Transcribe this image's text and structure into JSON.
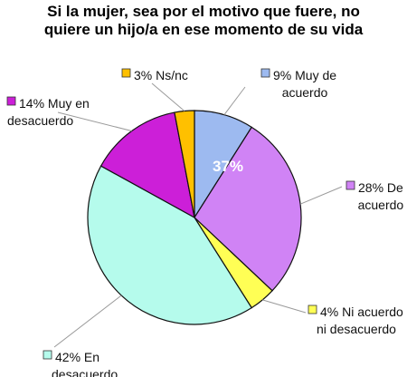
{
  "chart_data": {
    "type": "pie",
    "title": [
      "Si la mujer, sea por el motivo que fuere, no",
      "quiere un hijo/a en ese momento de su vida"
    ],
    "slices": [
      {
        "label": "9% Muy de acuerdo",
        "lines": [
          "9% Muy de",
          "acuerdo"
        ],
        "value": 9,
        "color": "#9dbaf0"
      },
      {
        "label": "28% De acuerdo",
        "lines": [
          "28% De",
          "acuerdo"
        ],
        "value": 28,
        "color": "#d083f5"
      },
      {
        "label": "4% Ni acuerdo ni desacuerdo",
        "lines": [
          "4% Ni acuerdo",
          "ni desacuerdo"
        ],
        "value": 4,
        "color": "#ffff55"
      },
      {
        "label": "42% En desacuerdo",
        "lines": [
          "42% En",
          "desacuerdo"
        ],
        "value": 42,
        "color": "#b5fbec"
      },
      {
        "label": "14% Muy en desacuerdo",
        "lines": [
          "14% Muy en",
          "desacuerdo"
        ],
        "value": 14,
        "color": "#cc1fd8"
      },
      {
        "label": "3% Ns/nc",
        "lines": [
          "3% Ns/nc"
        ],
        "value": 3,
        "color": "#ffc000"
      }
    ],
    "annotation": "37%"
  }
}
